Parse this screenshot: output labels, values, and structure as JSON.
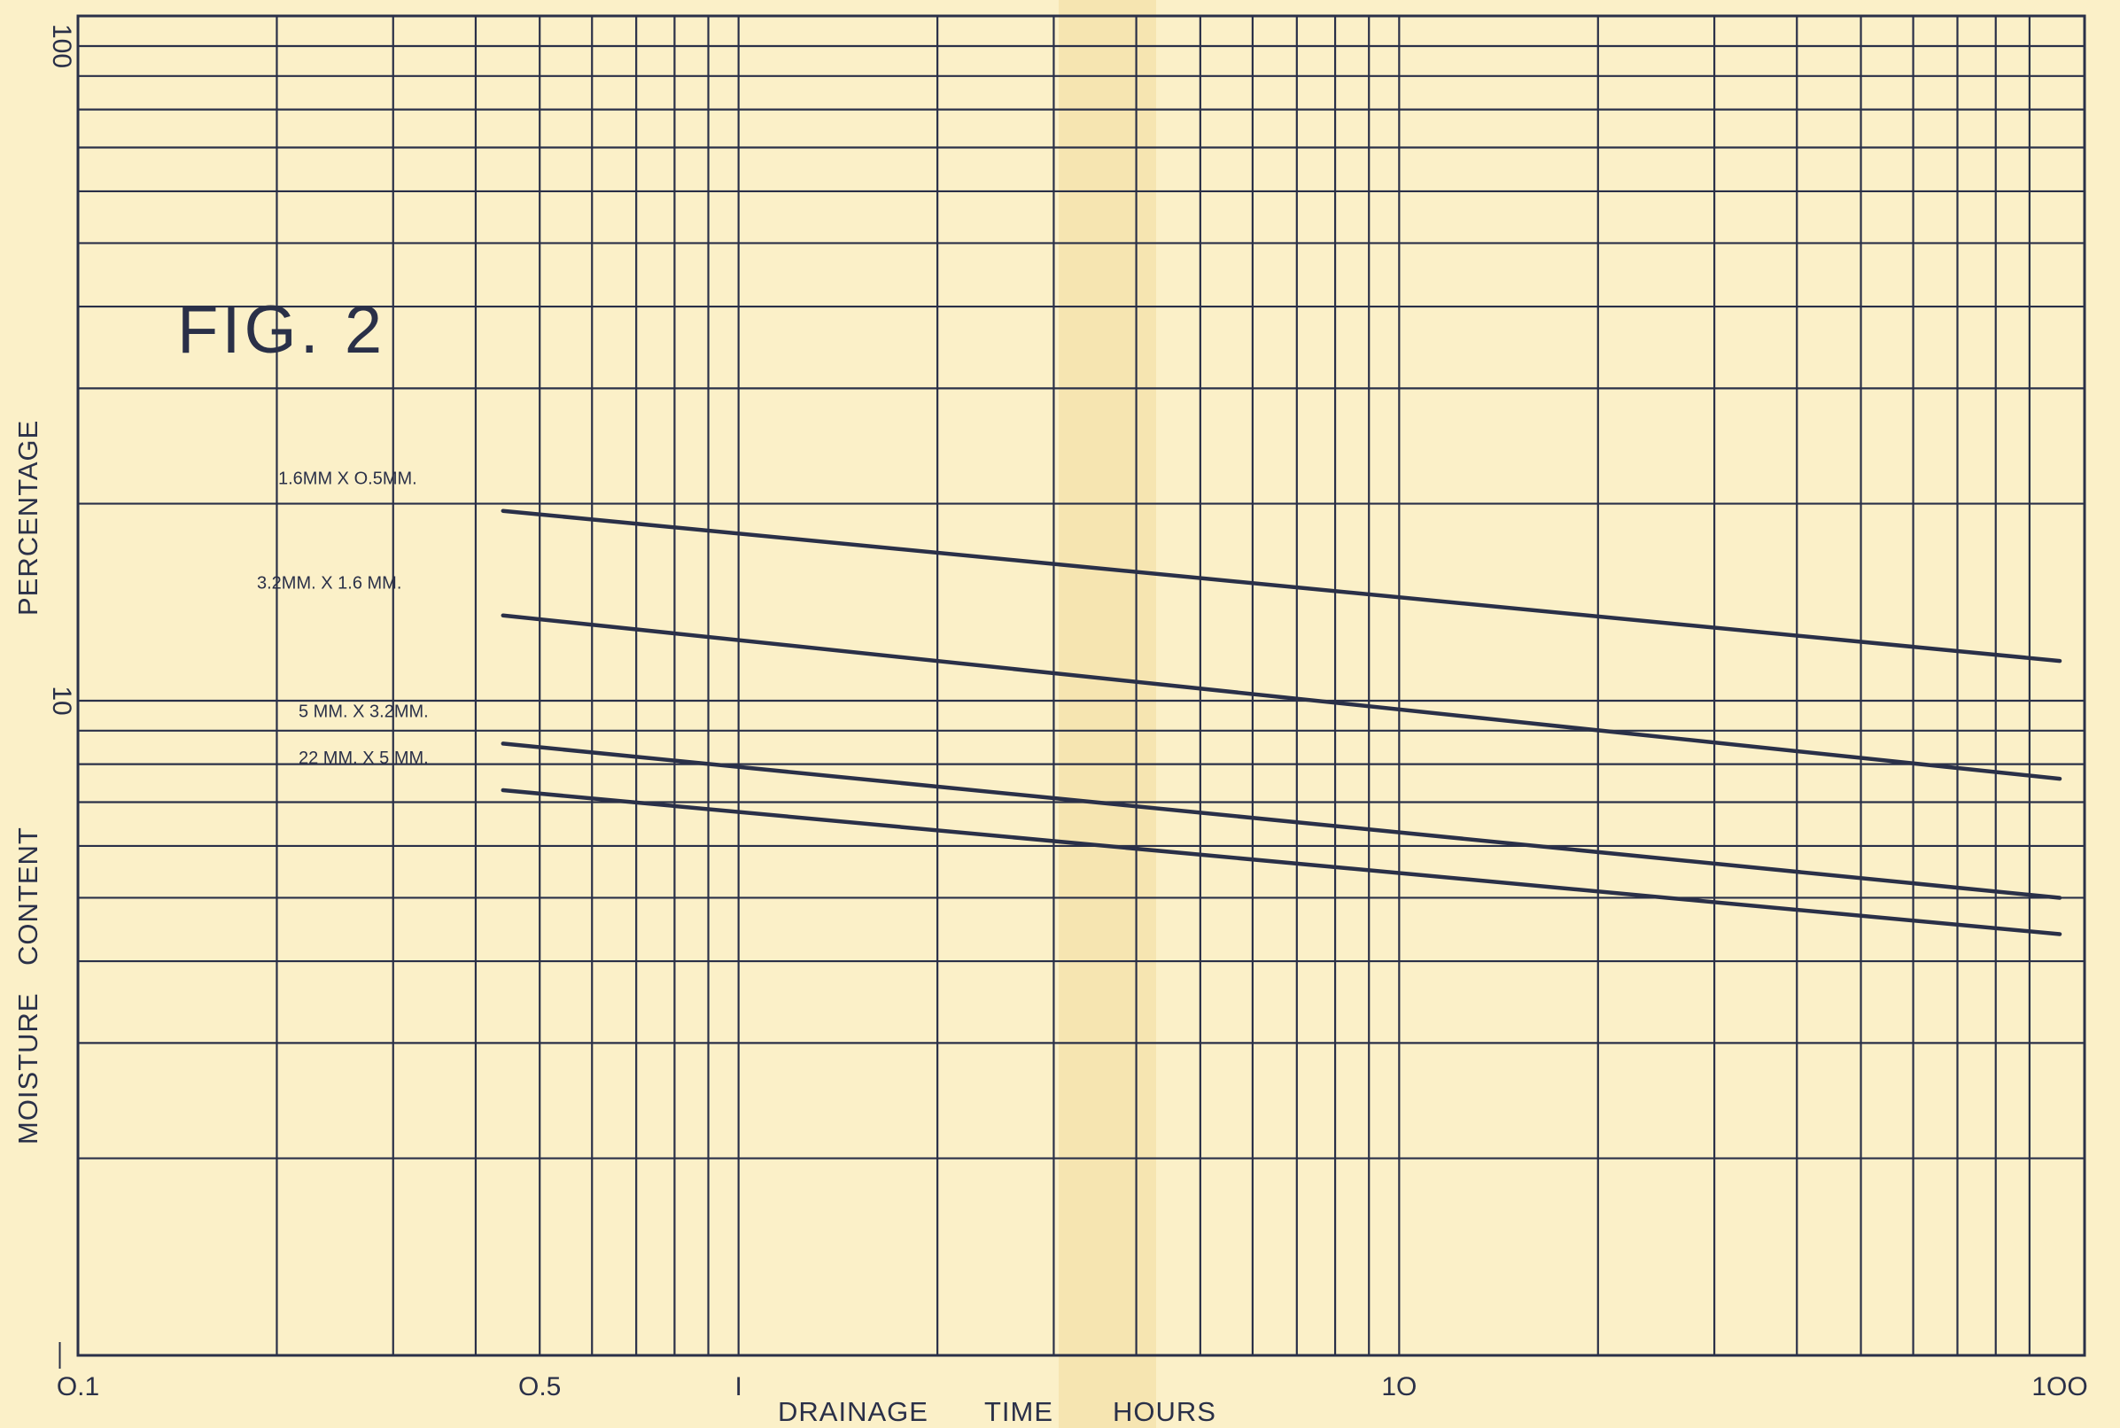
{
  "chart_data": {
    "type": "line",
    "title": "FIG. 2",
    "xlabel": {
      "w1": "DRAINAGE",
      "w2": "TIME",
      "w3": "HOURS"
    },
    "ylabel": {
      "w1": "MOISTURE",
      "w2": "CONTENT",
      "w3": "PERCENTAGE"
    },
    "x_scale": "log",
    "y_scale": "log",
    "xlim": [
      0.1,
      100
    ],
    "ylim": [
      1,
      100
    ],
    "grid": true,
    "x_ticks": [
      {
        "value": 0.1,
        "label": "O.1"
      },
      {
        "value": 0.5,
        "label": "O.5"
      },
      {
        "value": 1,
        "label": "I"
      },
      {
        "value": 10,
        "label": "1O"
      },
      {
        "value": 100,
        "label": "1OO"
      }
    ],
    "y_ticks": [
      {
        "value": 1,
        "label": "—"
      },
      {
        "value": 10,
        "label": "10"
      },
      {
        "value": 100,
        "label": "100"
      }
    ],
    "series": [
      {
        "name": "1.6MM X O.5MM.",
        "x": [
          0.44,
          100
        ],
        "y": [
          19.5,
          11.5
        ]
      },
      {
        "name": "3.2MM. X 1.6 MM.",
        "x": [
          0.44,
          100
        ],
        "y": [
          13.5,
          7.6
        ]
      },
      {
        "name": "5 MM. X 3.2MM.",
        "x": [
          0.44,
          100
        ],
        "y": [
          8.6,
          5.0
        ]
      },
      {
        "name": "22 MM. X 5 MM.",
        "x": [
          0.44,
          100
        ],
        "y": [
          7.3,
          4.4
        ]
      }
    ],
    "colors": {
      "paper": "#fbf0c8",
      "ink": "#2a3048",
      "fold": "#f3dfa6"
    }
  }
}
